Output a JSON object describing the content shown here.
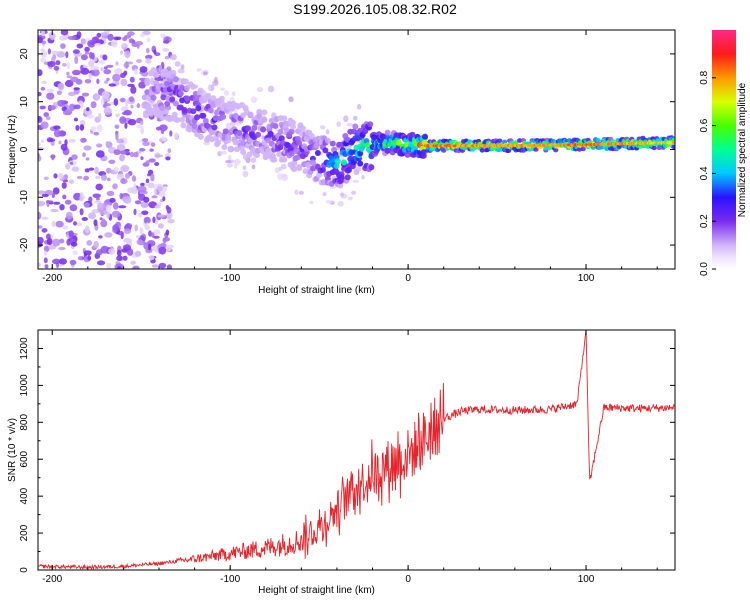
{
  "title": "S199.2026.105.08.32.R02",
  "chart_data": [
    {
      "type": "heatmap",
      "xlabel": "Height of straight line (km)",
      "ylabel": "Frequency (Hz)",
      "xlim": [
        -208,
        150
      ],
      "ylim": [
        -25,
        25
      ],
      "xticks": [
        -200,
        -100,
        0,
        100
      ],
      "yticks": [
        -20,
        -10,
        0,
        10,
        20
      ],
      "colorbar": {
        "label": "Normalized spectral amplitude",
        "range": [
          0,
          1
        ],
        "ticks": [
          "0.0",
          "0.2",
          "0.4",
          "0.6",
          "0.8"
        ]
      },
      "ridge": {
        "x": [
          -145,
          -130,
          -115,
          -100,
          -90,
          -80,
          -70,
          -60,
          -50,
          -40,
          -35,
          -30,
          -20,
          -10,
          0,
          10,
          50,
          100,
          150
        ],
        "frequency": [
          12,
          11,
          7,
          5,
          4,
          3,
          2,
          0,
          -2,
          -3,
          -2,
          0,
          1,
          1.5,
          1,
          0.8,
          0.8,
          1,
          1.5
        ],
        "amplitude": [
          0.15,
          0.25,
          0.25,
          0.2,
          0.25,
          0.2,
          0.25,
          0.2,
          0.3,
          0.4,
          0.45,
          0.5,
          0.5,
          0.55,
          0.6,
          0.85,
          0.8,
          0.85,
          0.75
        ]
      }
    },
    {
      "type": "line",
      "xlabel": "Height of straight line (km)",
      "ylabel": "SNR (10 * v/v)",
      "xlim": [
        -208,
        150
      ],
      "ylim": [
        0,
        1300
      ],
      "xticks": [
        -200,
        -100,
        0,
        100
      ],
      "yticks": [
        0,
        200,
        400,
        600,
        800,
        1000,
        1200
      ],
      "series": [
        {
          "name": "SNR",
          "color": "#e8232a",
          "x": [
            -208,
            -180,
            -160,
            -140,
            -120,
            -100,
            -80,
            -60,
            -50,
            -40,
            -30,
            -20,
            -10,
            0,
            10,
            20,
            30,
            40,
            60,
            80,
            95,
            100,
            102,
            110,
            130,
            150
          ],
          "y": [
            20,
            15,
            20,
            35,
            60,
            90,
            120,
            160,
            230,
            330,
            450,
            520,
            580,
            620,
            720,
            820,
            860,
            870,
            865,
            870,
            900,
            1300,
            470,
            880,
            875,
            880
          ]
        }
      ]
    }
  ]
}
